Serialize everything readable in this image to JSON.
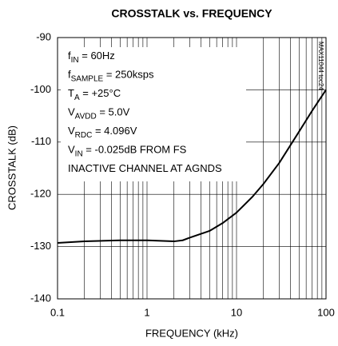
{
  "chart_data": {
    "type": "line",
    "title": "CROSSTALK vs. FREQUENCY",
    "xlabel": "FREQUENCY (kHz)",
    "ylabel": "CROSSTALK (dB)",
    "side_note": "MAX11044 toc24",
    "x": [
      0.1,
      0.2,
      0.5,
      1,
      2,
      2.5,
      3,
      5,
      7,
      10,
      15,
      20,
      30,
      50,
      70,
      100
    ],
    "series": [
      {
        "color": "#000000",
        "values": [
          -129.3,
          -129.0,
          -128.8,
          -128.8,
          -129.0,
          -128.8,
          -128.3,
          -127.0,
          -125.5,
          -123.5,
          -120.5,
          -118.0,
          -114.0,
          -108.0,
          -104.0,
          -100.0
        ]
      }
    ],
    "xlim": [
      0.1,
      100
    ],
    "ylim": [
      -140,
      -90
    ],
    "xticks": [
      0.1,
      1,
      10,
      100
    ],
    "yticks": [
      -90,
      -100,
      -110,
      -120,
      -130,
      -140
    ],
    "xscale": "log",
    "grid": true,
    "annotations": [
      {
        "main": "f",
        "sub": "IN",
        "rest": " = 60Hz"
      },
      {
        "main": "f",
        "sub": "SAMPLE",
        "rest": " = 250ksps"
      },
      {
        "main": "T",
        "sub": "A",
        "rest": " = +25°C"
      },
      {
        "main": "V",
        "sub": "AVDD",
        "rest": " = 5.0V"
      },
      {
        "main": "V",
        "sub": "RDC",
        "rest": " = 4.096V"
      },
      {
        "main": "V",
        "sub": "IN",
        "rest": " = -0.025dB FROM FS"
      },
      {
        "main": "INACTIVE CHANNEL AT AGNDS"
      }
    ]
  }
}
